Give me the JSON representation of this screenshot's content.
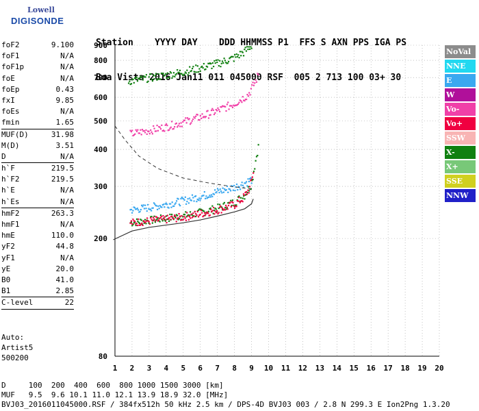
{
  "logo": {
    "line1": "Lowell",
    "line2": "DIGISONDE"
  },
  "header": {
    "labels": [
      "Station",
      "YYYY",
      "DAY",
      "DDD",
      "HHMMSS",
      "P1",
      "FFS",
      "S",
      "AXN",
      "PPS",
      "IGA",
      "PS"
    ],
    "values": [
      "Boa Vista",
      "2016",
      "Jan11",
      "011",
      "045000",
      "RSF",
      "005",
      "2",
      "713",
      "100",
      "03+",
      "30"
    ]
  },
  "params": [
    {
      "name": "foF2",
      "value": "9.100"
    },
    {
      "name": "foF1",
      "value": "N/A"
    },
    {
      "name": "foF1p",
      "value": "N/A"
    },
    {
      "name": "foE",
      "value": "N/A"
    },
    {
      "name": "foEp",
      "value": "0.43"
    },
    {
      "name": "fxI",
      "value": "9.85"
    },
    {
      "name": "foEs",
      "value": "N/A"
    },
    {
      "name": "fmin",
      "value": "1.65"
    },
    {
      "sep": true
    },
    {
      "name": "MUF(D)",
      "value": "31.98"
    },
    {
      "name": "M(D)",
      "value": "3.51"
    },
    {
      "name": "D",
      "value": "N/A"
    },
    {
      "sep": true
    },
    {
      "name": "h`F",
      "value": "219.5"
    },
    {
      "name": "h`F2",
      "value": "219.5"
    },
    {
      "name": "h`E",
      "value": "N/A"
    },
    {
      "name": "h`Es",
      "value": "N/A"
    },
    {
      "sep": true
    },
    {
      "name": "hmF2",
      "value": "263.3"
    },
    {
      "name": "hmF1",
      "value": "N/A"
    },
    {
      "name": "hmE",
      "value": "110.0"
    },
    {
      "name": "yF2",
      "value": "44.8"
    },
    {
      "name": "yF1",
      "value": "N/A"
    },
    {
      "name": "yE",
      "value": "20.0"
    },
    {
      "name": "B0",
      "value": "41.0"
    },
    {
      "name": "B1",
      "value": "2.85"
    },
    {
      "sep": true
    },
    {
      "name": "C-level",
      "value": "22"
    },
    {
      "sep": true
    }
  ],
  "auto": {
    "line1": "Auto:",
    "line2": "Artist5",
    "line3": "500200"
  },
  "legend": [
    {
      "label": "NoVal",
      "color": "#8c8c8c"
    },
    {
      "label": "NNE",
      "color": "#22d8f0"
    },
    {
      "label": "E",
      "color": "#3aa8f0"
    },
    {
      "label": "W",
      "color": "#b0109a"
    },
    {
      "label": "Vo-",
      "color": "#f040a8"
    },
    {
      "label": "Vo+",
      "color": "#f00040"
    },
    {
      "label": "SSW",
      "color": "#f8b4b4"
    },
    {
      "label": "X-",
      "color": "#108010"
    },
    {
      "label": "X+",
      "color": "#78c878"
    },
    {
      "label": "SSE",
      "color": "#d0d020"
    },
    {
      "label": "NNW",
      "color": "#2020c8"
    }
  ],
  "footer": {
    "d_label": "D",
    "d_values": [
      "100",
      "200",
      "400",
      "600",
      "800",
      "1000",
      "1500",
      "3000"
    ],
    "d_unit": "[km]",
    "muf_label": "MUF",
    "muf_values": [
      "9.5",
      "9.6",
      "10.1",
      "11.0",
      "12.1",
      "13.9",
      "18.9",
      "32.0"
    ],
    "muf_unit": "[MHz]",
    "info": "BVJ03_2016011045000.RSF / 384fx512h 50 kHz 2.5 km / DPS-4D BVJ03 003 / 2.8 N 299.3 E Ion2Png 1.3.20"
  },
  "chart_data": {
    "type": "scatter",
    "xlim": [
      1,
      20
    ],
    "ylim": [
      80,
      900
    ],
    "xticks": [
      "1",
      "2",
      "3",
      "4",
      "5",
      "6",
      "7",
      "8",
      "9",
      "10",
      "11",
      "12",
      "13",
      "14",
      "15",
      "16",
      "17",
      "18",
      "19",
      "20"
    ],
    "yticks": [
      "80",
      "200",
      "300",
      "400",
      "500",
      "600",
      "700",
      "800",
      "900"
    ],
    "yscale": "log",
    "grid": "dotted",
    "traces": [
      {
        "name": "X-",
        "color": "#108010",
        "x": [
          1.9,
          3,
          4,
          5,
          6,
          7,
          8,
          8.6,
          9.0,
          9.2,
          9.4
        ],
        "y": [
          222,
          226,
          230,
          234,
          240,
          248,
          260,
          275,
          300,
          350,
          400
        ]
      },
      {
        "name": "Vo+",
        "color": "#f00040",
        "x": [
          1.9,
          3,
          4,
          5,
          6,
          7,
          8,
          8.5,
          8.9,
          9.1
        ],
        "y": [
          222,
          225,
          228,
          232,
          238,
          245,
          255,
          268,
          290,
          330
        ]
      },
      {
        "name": "E",
        "color": "#3aa8f0",
        "x": [
          1.9,
          3,
          4,
          5,
          6,
          7,
          8,
          8.5,
          9.0
        ],
        "y": [
          245,
          250,
          256,
          263,
          272,
          282,
          292,
          300,
          310
        ]
      },
      {
        "name": "Vo-",
        "color": "#f040a8",
        "x": [
          1.9,
          3,
          4,
          5,
          6,
          7,
          8,
          8.8,
          9.2,
          9.4
        ],
        "y": [
          443,
          455,
          468,
          485,
          505,
          530,
          560,
          600,
          660,
          700
        ]
      },
      {
        "name": "X- (2nd hop)",
        "color": "#108010",
        "x": [
          1.8,
          3,
          4,
          5,
          6,
          7,
          8,
          8.6,
          9.0
        ],
        "y": [
          668,
          685,
          700,
          718,
          740,
          765,
          800,
          840,
          880
        ]
      }
    ],
    "profile": {
      "x": [
        0.9,
        2,
        3,
        4,
        5,
        6,
        7,
        8,
        8.6,
        9.0,
        9.1
      ],
      "y": [
        198,
        212,
        218,
        222,
        226,
        231,
        238,
        246,
        252,
        262,
        272
      ]
    },
    "dashed": {
      "x": [
        1.0,
        1.6,
        2.4,
        3.5,
        5,
        6.5,
        7.8,
        8.6,
        9.0
      ],
      "y": [
        480,
        430,
        380,
        345,
        320,
        308,
        300,
        296,
        294
      ]
    }
  }
}
